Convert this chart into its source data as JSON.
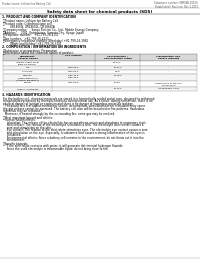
{
  "background_color": "#ffffff",
  "header_left": "Product name: Lithium Ion Battery Cell",
  "header_right_line1": "Substance number: 99R04B-00010",
  "header_right_line2": "Established / Revision: Dec.1.2010",
  "title": "Safety data sheet for chemical products (SDS)",
  "section1_title": "1. PRODUCT AND COMPANY IDENTIFICATION",
  "section1_lines": [
    "・Product name: Lithium Ion Battery Cell",
    "・Product code: Cylindrical-type cell",
    "        UR18650J, UR18650L, UR18650A",
    "・Company name:     Sanyo Electric Co., Ltd., Mobile Energy Company",
    "・Address:     2001, Kaminaizen, Sumoto-City, Hyogo, Japan",
    "・Telephone number:   +81-799-26-4111",
    "・Fax number:   +81-799-26-4121",
    "・Emergency telephone number (Weekday) +81-799-26-3062",
    "        [Night and holiday] +81-799-26-3101"
  ],
  "section2_title": "2. COMPOSITION / INFORMATION ON INGREDIENTS",
  "section2_sub": "・Substance or preparation: Preparation",
  "section2_table_note": "・Information about the chemical nature of product:",
  "table_col_headers": [
    "Component\nSeveral names",
    "CAS number",
    "Concentration /\nConcentration range",
    "Classification and\nhazard labeling"
  ],
  "table_rows": [
    [
      "Lithium cobalt oxide\n(LiMn-Co-RNiO2)",
      "-",
      "30-60%",
      "-"
    ],
    [
      "Iron",
      "7439-89-6",
      "15-30%",
      "-"
    ],
    [
      "Aluminum",
      "7429-90-5",
      "2-5%",
      "-"
    ],
    [
      "Graphite\n(Flake graphite-1)\n(Artificial graphite-1)",
      "7782-42-5\n7782-42-5",
      "10-25%",
      "-"
    ],
    [
      "Copper",
      "7440-50-8",
      "5-15%",
      "Sensitization of the skin\ngroup R43.2"
    ],
    [
      "Organic electrolyte",
      "-",
      "10-20%",
      "Inflammable liquid"
    ]
  ],
  "section3_title": "3. HAZARDS IDENTIFICATION",
  "section3_body": [
    "For the battery cell, chemical materials are stored in a hermetically sealed metal case, designed to withstand",
    "temperatures produced by chemical reactions during normal use. As a result, during normal use, there is no",
    "physical danger of ignition or explosion and there is no danger of hazardous materials leakage.",
    "  If exposed to a fire, added mechanical shocks, decomposed, wires/alarms/other stimulants may cause",
    "the gas release cannot be operated. The battery cell case will be breached or fire patterns. Hazardous",
    "materials may be released.",
    "  Moreover, if heated strongly by the surrounding fire, some gas may be emitted."
  ],
  "section3_bullet1": "・Most important hazard and effects:",
  "section3_human": "Human health effects:",
  "section3_human_lines": [
    "  Inhalation: The release of the electrolyte has an anesthesia action and stimulates in respiratory tract.",
    "  Skin contact: The release of the electrolyte stimulates a skin. The electrolyte skin contact causes a",
    "  sore and stimulation on the skin.",
    "  Eye contact: The release of the electrolyte stimulates eyes. The electrolyte eye contact causes a sore",
    "  and stimulation on the eye. Especially, a substance that causes a strong inflammation of the eyes is",
    "  contained."
  ],
  "section3_env_lines": [
    "  Environmental effects: Since a battery cell remains in the environment, do not throw out it into the",
    "  environment."
  ],
  "section3_bullet2": "・Specific hazards:",
  "section3_specific_lines": [
    "  If the electrolyte contacts with water, it will generate detrimental hydrogen fluoride.",
    "  Since the used electrolyte is inflammable liquid, do not bring close to fire."
  ]
}
